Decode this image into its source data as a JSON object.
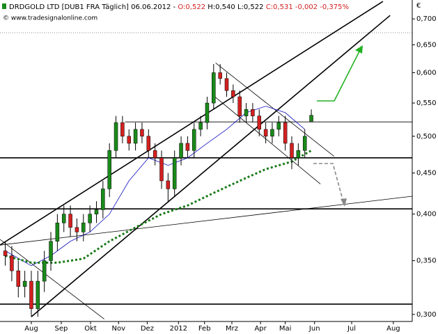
{
  "chart_data": {
    "type": "candlestick",
    "header": {
      "name": "DRDGOLD LTD [DUB1 FRA  Täglich] 06.06.2012 -",
      "open_text": "O:0,522",
      "hl_text": "H:0,540 L:0,522",
      "close_text": "C:0,531 -0,002 -0,375%"
    },
    "watermark": "© www.tradesignalonline.com",
    "currency": "€",
    "log_scale": true,
    "up_color": "#1a8a1a",
    "down_color": "#d42020",
    "x": [
      -4,
      -3,
      -2,
      -1,
      0,
      1,
      2,
      3,
      4,
      5,
      6,
      7,
      8,
      9,
      10,
      11,
      12,
      13,
      14,
      15,
      16,
      17,
      18,
      19,
      20,
      21,
      22,
      23,
      24,
      25,
      26,
      27,
      28,
      29,
      30,
      31,
      32,
      33,
      34,
      35,
      36,
      37,
      38,
      39,
      40,
      41,
      42,
      43
    ],
    "open": [
      0.36,
      0.355,
      0.34,
      0.325,
      0.33,
      0.305,
      0.33,
      0.35,
      0.37,
      0.39,
      0.4,
      0.385,
      0.38,
      0.39,
      0.4,
      0.405,
      0.43,
      0.48,
      0.52,
      0.5,
      0.49,
      0.51,
      0.5,
      0.48,
      0.47,
      0.44,
      0.43,
      0.47,
      0.49,
      0.48,
      0.51,
      0.52,
      0.55,
      0.6,
      0.59,
      0.57,
      0.56,
      0.53,
      0.54,
      0.53,
      0.51,
      0.5,
      0.51,
      0.52,
      0.49,
      0.47,
      0.48,
      0.522
    ],
    "high": [
      0.37,
      0.365,
      0.35,
      0.34,
      0.34,
      0.34,
      0.36,
      0.38,
      0.4,
      0.41,
      0.41,
      0.395,
      0.4,
      0.41,
      0.415,
      0.44,
      0.49,
      0.53,
      0.53,
      0.51,
      0.52,
      0.52,
      0.51,
      0.49,
      0.48,
      0.45,
      0.48,
      0.5,
      0.5,
      0.52,
      0.53,
      0.56,
      0.615,
      0.615,
      0.6,
      0.58,
      0.57,
      0.55,
      0.55,
      0.54,
      0.52,
      0.52,
      0.53,
      0.53,
      0.5,
      0.49,
      0.51,
      0.54
    ],
    "low": [
      0.345,
      0.33,
      0.315,
      0.315,
      0.298,
      0.298,
      0.32,
      0.34,
      0.36,
      0.38,
      0.375,
      0.37,
      0.37,
      0.38,
      0.39,
      0.395,
      0.42,
      0.47,
      0.49,
      0.48,
      0.48,
      0.49,
      0.47,
      0.46,
      0.43,
      0.415,
      0.42,
      0.46,
      0.47,
      0.47,
      0.5,
      0.51,
      0.54,
      0.58,
      0.56,
      0.55,
      0.52,
      0.52,
      0.52,
      0.5,
      0.49,
      0.49,
      0.5,
      0.48,
      0.455,
      0.46,
      0.47,
      0.522
    ],
    "close": [
      0.355,
      0.34,
      0.325,
      0.33,
      0.305,
      0.33,
      0.35,
      0.37,
      0.39,
      0.4,
      0.385,
      0.38,
      0.39,
      0.4,
      0.405,
      0.43,
      0.48,
      0.52,
      0.5,
      0.49,
      0.51,
      0.5,
      0.48,
      0.47,
      0.44,
      0.43,
      0.47,
      0.49,
      0.48,
      0.51,
      0.52,
      0.55,
      0.6,
      0.59,
      0.57,
      0.56,
      0.53,
      0.54,
      0.53,
      0.51,
      0.5,
      0.51,
      0.52,
      0.49,
      0.47,
      0.48,
      0.5,
      0.531
    ],
    "overlays": [
      {
        "color": "#1010c0",
        "width": 0.8,
        "dotted": false,
        "x": [
          -4,
          0,
          3,
          6,
          9,
          12,
          15,
          18,
          21,
          24,
          27,
          30,
          33,
          36,
          39,
          42
        ],
        "y": [
          0.36,
          0.345,
          0.355,
          0.37,
          0.38,
          0.4,
          0.44,
          0.47,
          0.46,
          0.47,
          0.49,
          0.51,
          0.535,
          0.545,
          0.535,
          0.51
        ]
      },
      {
        "color": "#1a7a1a",
        "width": 3,
        "dotted": true,
        "x": [
          -4,
          0,
          4,
          8,
          12,
          16,
          20,
          24,
          28,
          32,
          36,
          40,
          43
        ],
        "y": [
          0.355,
          0.348,
          0.348,
          0.352,
          0.37,
          0.385,
          0.4,
          0.41,
          0.425,
          0.44,
          0.455,
          0.465,
          0.48
        ]
      }
    ],
    "trendlines": [
      {
        "width": 1.6,
        "x": [
          -4.81,
          54.0
        ],
        "y": [
          0.366,
          0.736
        ]
      },
      {
        "width": 1.6,
        "x": [
          0,
          55.1
        ],
        "y": [
          0.298,
          0.707
        ]
      },
      {
        "width": 0.8,
        "x": [
          -4.81,
          58.5
        ],
        "y": [
          0.366,
          0.421
        ]
      },
      {
        "width": 0.8,
        "x": [
          -4.81,
          11.2
        ],
        "y": [
          0.372,
          0.296
        ]
      },
      {
        "width": 0.8,
        "x": [
          28.3,
          46.5
        ],
        "y": [
          0.617,
          0.472
        ]
      },
      {
        "width": 0.8,
        "x": [
          28.3,
          44.4
        ],
        "y": [
          0.559,
          0.436
        ]
      }
    ],
    "levels": [
      {
        "value": 0.521,
        "from": 14.4,
        "width": 0.8
      },
      {
        "value": 0.47,
        "from": -4.81,
        "width": 1.6
      },
      {
        "value": 0.406,
        "from": -4.81,
        "width": 1.6
      },
      {
        "value": 0.309,
        "from": -4.81,
        "width": 1.6
      }
    ],
    "xlim": [
      -4.81,
      58.5
    ],
    "xticks": [
      {
        "value": 0,
        "label": "Aug"
      },
      {
        "value": 4.6,
        "label": "Sep"
      },
      {
        "value": 9.1,
        "label": "Okt"
      },
      {
        "value": 13.4,
        "label": "Nov"
      },
      {
        "value": 17.8,
        "label": "Dez"
      },
      {
        "value": 22.6,
        "label": "2012"
      },
      {
        "value": 26.6,
        "label": "Feb"
      },
      {
        "value": 30.8,
        "label": "Mrz"
      },
      {
        "value": 35.2,
        "label": "Apr"
      },
      {
        "value": 39.0,
        "label": "Mai"
      },
      {
        "value": 43.5,
        "label": "Jun"
      },
      {
        "value": 49.2,
        "label": "Jul"
      },
      {
        "value": 55.6,
        "label": "Aug"
      }
    ],
    "ylim": [
      0.294,
      0.739
    ],
    "yticks": [
      {
        "value": 0.3,
        "label": "0,300"
      },
      {
        "value": 0.35,
        "label": "0,350"
      },
      {
        "value": 0.4,
        "label": "0,400"
      },
      {
        "value": 0.45,
        "label": "0,450"
      },
      {
        "value": 0.5,
        "label": "0,500"
      },
      {
        "value": 0.55,
        "label": "0,550"
      },
      {
        "value": 0.6,
        "label": "0,600"
      },
      {
        "value": 0.65,
        "label": "0,650"
      },
      {
        "value": 0.7,
        "label": "0,700"
      }
    ]
  }
}
